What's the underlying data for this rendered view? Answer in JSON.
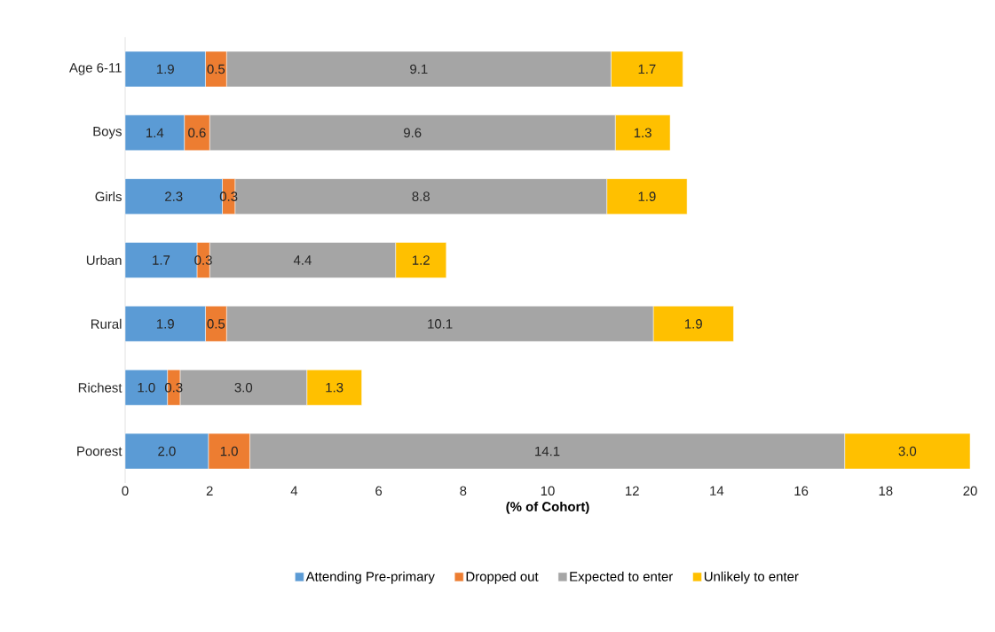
{
  "chart_data": {
    "type": "bar",
    "orientation": "horizontal",
    "stacked": true,
    "xlabel": "(% of Cohort)",
    "categories": [
      "Age 6-11",
      "Boys",
      "Girls",
      "Urban",
      "Rural",
      "Richest",
      "Poorest"
    ],
    "series": [
      {
        "name": "Attending Pre-primary",
        "color": "#5b9bd5",
        "values": [
          1.9,
          1.4,
          2.3,
          1.7,
          1.9,
          1.0,
          1.97
        ],
        "value_labels": [
          "1.9",
          "1.4",
          "2.3",
          "1.7",
          "1.9",
          "1.0",
          "2.0"
        ]
      },
      {
        "name": "Dropped out",
        "color": "#ed7d31",
        "values": [
          0.5,
          0.6,
          0.3,
          0.3,
          0.5,
          0.3,
          0.98
        ],
        "value_labels": [
          "0.5",
          "0.6",
          "0.3",
          "0.3",
          "0.5",
          "0.3",
          "1.0"
        ]
      },
      {
        "name": "Expected to enter",
        "color": "#a5a5a5",
        "values": [
          9.1,
          9.6,
          8.8,
          4.4,
          10.1,
          3.0,
          14.08
        ],
        "value_labels": [
          "9.1",
          "9.6",
          "8.8",
          "4.4",
          "10.1",
          "3.0",
          "14.1"
        ]
      },
      {
        "name": "Unlikely to enter",
        "color": "#ffc000",
        "values": [
          1.7,
          1.3,
          1.9,
          1.2,
          1.9,
          1.3,
          2.97
        ],
        "value_labels": [
          "1.7",
          "1.3",
          "1.9",
          "1.2",
          "1.9",
          "1.3",
          "3.0"
        ]
      }
    ],
    "xlim": [
      0,
      20
    ],
    "xticks": [
      0,
      2,
      4,
      6,
      8,
      10,
      12,
      14,
      16,
      18,
      20
    ],
    "legend": "bottom"
  }
}
